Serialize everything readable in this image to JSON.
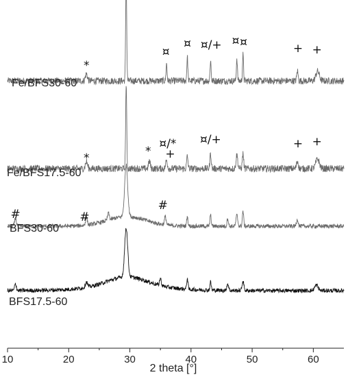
{
  "chart_data": {
    "type": "line",
    "xlabel": "2 theta [°]",
    "ylabel": "",
    "xlim": [
      10,
      65
    ],
    "xticks": [
      "10",
      "20",
      "30",
      "40",
      "50",
      "60"
    ],
    "xtick_values": [
      10,
      20,
      30,
      40,
      50,
      60
    ],
    "grid": false,
    "baseline_color": "#777777",
    "series": [
      {
        "name": "Fe/BFS30-60",
        "color": "#6a6a6a",
        "offset": 390,
        "noise": 5,
        "peaks": [
          {
            "x": 22.9,
            "h": 10,
            "w": 0.25
          },
          {
            "x": 29.4,
            "h": 150,
            "w": 0.12
          },
          {
            "x": 36.0,
            "h": 25,
            "w": 0.12
          },
          {
            "x": 39.4,
            "h": 35,
            "w": 0.12
          },
          {
            "x": 43.2,
            "h": 30,
            "w": 0.12
          },
          {
            "x": 47.5,
            "h": 33,
            "w": 0.12
          },
          {
            "x": 48.5,
            "h": 38,
            "w": 0.12
          },
          {
            "x": 57.4,
            "h": 15,
            "w": 0.15
          },
          {
            "x": 60.7,
            "h": 14,
            "w": 0.4
          }
        ]
      },
      {
        "name": "Fe/BFS17.5-60",
        "color": "#6a6a6a",
        "offset": 262,
        "noise": 5,
        "peaks": [
          {
            "x": 22.9,
            "h": 10,
            "w": 0.25
          },
          {
            "x": 29.4,
            "h": 125,
            "w": 0.12
          },
          {
            "x": 33.2,
            "h": 11,
            "w": 0.2
          },
          {
            "x": 36.0,
            "h": 12,
            "w": 0.2
          },
          {
            "x": 39.4,
            "h": 18,
            "w": 0.15
          },
          {
            "x": 43.2,
            "h": 22,
            "w": 0.15
          },
          {
            "x": 47.5,
            "h": 20,
            "w": 0.2
          },
          {
            "x": 48.5,
            "h": 22,
            "w": 0.15
          },
          {
            "x": 57.4,
            "h": 11,
            "w": 0.2
          },
          {
            "x": 60.7,
            "h": 14,
            "w": 0.4
          }
        ]
      },
      {
        "name": "BFS30-60",
        "color": "#6a6a6a",
        "offset": 178,
        "noise": 3,
        "peaks": [
          {
            "x": 11.3,
            "h": 12,
            "w": 0.2
          },
          {
            "x": 22.9,
            "h": 12,
            "w": 0.2
          },
          {
            "x": 26.5,
            "h": 10,
            "w": 0.2
          },
          {
            "x": 29.4,
            "h": 75,
            "w": 0.35
          },
          {
            "x": 35.8,
            "h": 12,
            "w": 0.2
          },
          {
            "x": 39.4,
            "h": 14,
            "w": 0.15
          },
          {
            "x": 43.2,
            "h": 16,
            "w": 0.15
          },
          {
            "x": 46.0,
            "h": 12,
            "w": 0.15
          },
          {
            "x": 47.5,
            "h": 16,
            "w": 0.2
          },
          {
            "x": 48.5,
            "h": 22,
            "w": 0.15
          },
          {
            "x": 57.4,
            "h": 10,
            "w": 0.2
          }
        ]
      },
      {
        "name": "BFS17.5-60",
        "color": "#111111",
        "offset": 84,
        "noise": 3,
        "peaks": [
          {
            "x": 11.3,
            "h": 10,
            "w": 0.2
          },
          {
            "x": 22.9,
            "h": 8,
            "w": 0.25
          },
          {
            "x": 29.4,
            "h": 72,
            "w": 0.35
          },
          {
            "x": 35.0,
            "h": 10,
            "w": 0.2
          },
          {
            "x": 39.4,
            "h": 16,
            "w": 0.15
          },
          {
            "x": 43.2,
            "h": 12,
            "w": 0.15
          },
          {
            "x": 46.0,
            "h": 10,
            "w": 0.2
          },
          {
            "x": 48.5,
            "h": 14,
            "w": 0.2
          },
          {
            "x": 60.5,
            "h": 8,
            "w": 0.4
          }
        ]
      }
    ],
    "annotations": [
      {
        "text": "¤",
        "x": 29.4,
        "y": 525
      },
      {
        "text": "*",
        "x": 22.9,
        "y": 407
      },
      {
        "text": "¤",
        "x": 35.9,
        "y": 427
      },
      {
        "text": "¤",
        "x": 39.4,
        "y": 439
      },
      {
        "text": "¤/+",
        "x": 43.3,
        "y": 437
      },
      {
        "text": "¤",
        "x": 47.3,
        "y": 443
      },
      {
        "text": "¤",
        "x": 48.6,
        "y": 441
      },
      {
        "text": "+",
        "x": 57.5,
        "y": 432
      },
      {
        "text": "+",
        "x": 60.6,
        "y": 430
      },
      {
        "text": "*",
        "x": 22.9,
        "y": 272
      },
      {
        "text": "*",
        "x": 33.0,
        "y": 282
      },
      {
        "text": "¤/*",
        "x": 36.2,
        "y": 293
      },
      {
        "text": "+",
        "x": 36.6,
        "y": 278
      },
      {
        "text": "¤/+",
        "x": 43.2,
        "y": 299
      },
      {
        "text": "+",
        "x": 57.5,
        "y": 293
      },
      {
        "text": "+",
        "x": 60.6,
        "y": 296
      },
      {
        "text": "#",
        "x": 11.3,
        "y": 190
      },
      {
        "text": "#",
        "x": 22.6,
        "y": 186
      },
      {
        "text": "#",
        "x": 35.4,
        "y": 203
      }
    ]
  }
}
